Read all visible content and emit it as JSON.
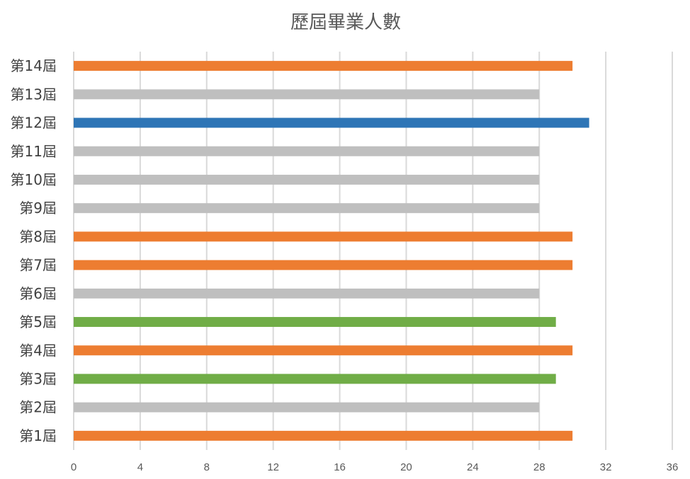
{
  "chart_data": {
    "type": "bar",
    "orientation": "horizontal",
    "title": "歷屆畢業人數",
    "categories": [
      "第1屆",
      "第2屆",
      "第3屆",
      "第4屆",
      "第5屆",
      "第6屆",
      "第7屆",
      "第8屆",
      "第9屆",
      "第10屆",
      "第11屆",
      "第12屆",
      "第13屆",
      "第14屆"
    ],
    "values": [
      30,
      28,
      29,
      30,
      29,
      28,
      30,
      30,
      28,
      28,
      28,
      31,
      28,
      30
    ],
    "bar_colors": [
      "#ED7D31",
      "#BFBFBF",
      "#70AD47",
      "#ED7D31",
      "#70AD47",
      "#BFBFBF",
      "#ED7D31",
      "#ED7D31",
      "#BFBFBF",
      "#BFBFBF",
      "#BFBFBF",
      "#2E75B6",
      "#BFBFBF",
      "#ED7D31"
    ],
    "xlim": [
      0,
      36
    ],
    "xticks": [
      0,
      4,
      8,
      12,
      16,
      20,
      24,
      28,
      32,
      36
    ],
    "grid": true,
    "legend": "none"
  }
}
